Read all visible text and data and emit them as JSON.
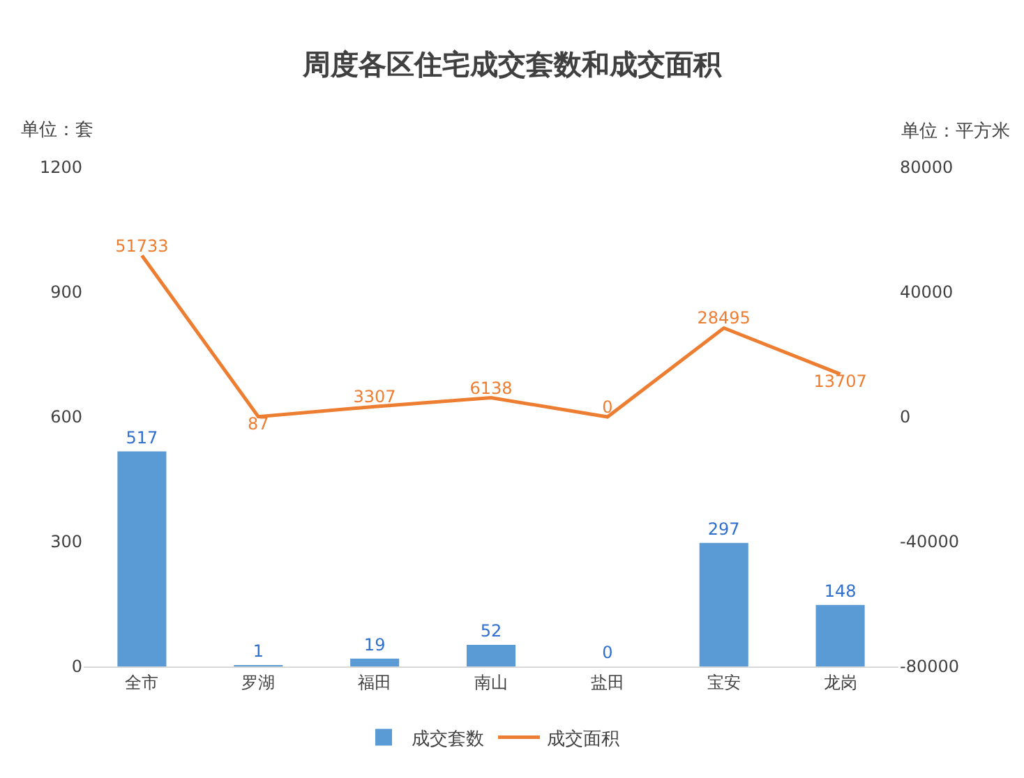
{
  "chart_data": {
    "type": "bar",
    "title": "周度各区住宅成交套数和成交面积",
    "ylabel": "单位：套",
    "y2label": "单位：平方米",
    "categories": [
      "全市",
      "罗湖",
      "福田",
      "南山",
      "盐田",
      "宝安",
      "龙岗"
    ],
    "series": [
      {
        "name": "成交套数",
        "color": "#5b9bd5",
        "values": [
          517,
          1,
          19,
          52,
          0,
          297,
          148
        ]
      },
      {
        "name": "成交面积",
        "type": "line",
        "axis": "y2",
        "color": "#ed7d31",
        "values": [
          51733,
          87,
          3307,
          6138,
          0,
          28495,
          13707
        ]
      }
    ],
    "ylim": [
      0,
      1200
    ],
    "yticks": [
      0,
      300,
      600,
      900,
      1200
    ],
    "y2lim": [
      -80000,
      80000
    ],
    "y2ticks": [
      -80000,
      -40000,
      0,
      40000,
      80000
    ],
    "data_labels": true,
    "legend": "bottom",
    "marker": "none",
    "line_style": "solid"
  }
}
